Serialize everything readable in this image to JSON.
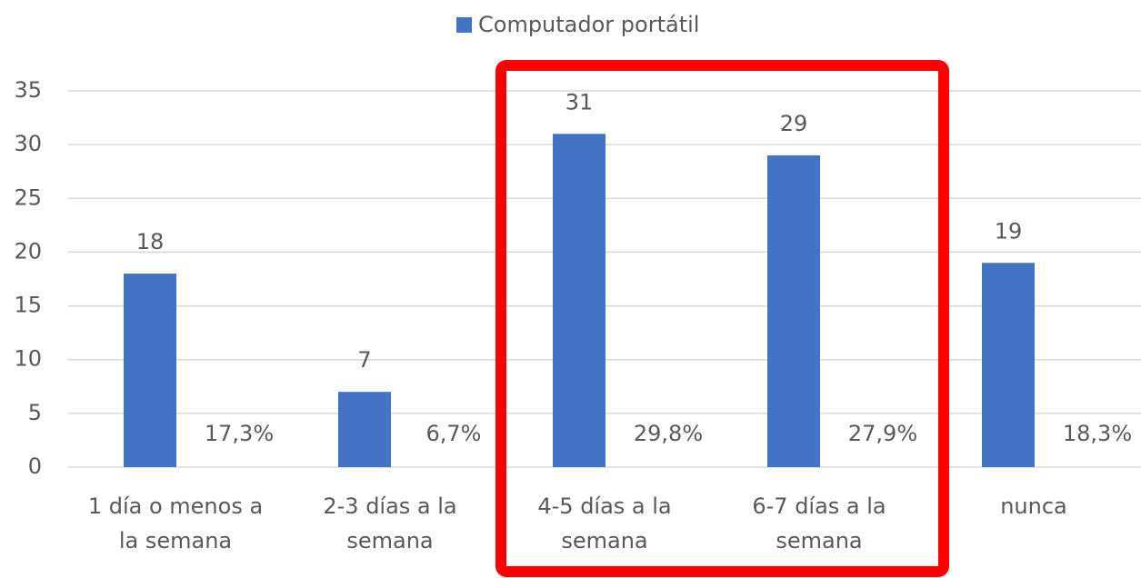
{
  "chart_data": {
    "type": "bar",
    "categories": [
      "1 día o menos a la semana",
      "2-3 días a la semana",
      "4-5 días a la semana",
      "6-7 días a la semana",
      "nunca"
    ],
    "series": [
      {
        "name": "Computador portátil",
        "color": "#4472c4",
        "values": [
          18,
          7,
          31,
          29,
          19
        ]
      }
    ],
    "percent_labels": [
      "17,3%",
      "6,7%",
      "29,8%",
      "27,9%",
      "18,3%"
    ],
    "ylim": [
      0,
      35
    ],
    "yticks": [
      0,
      5,
      10,
      15,
      20,
      25,
      30,
      35
    ],
    "grid": true
  }
}
